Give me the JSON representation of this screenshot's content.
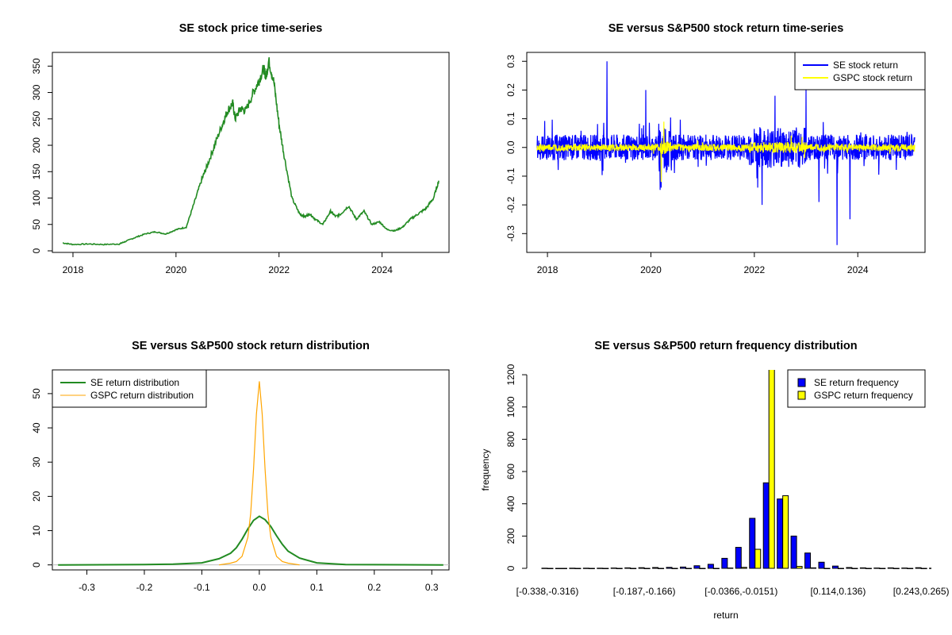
{
  "colors": {
    "se": "#0000FF",
    "gspc": "#FFFF00",
    "price": "#228B22",
    "se_density": "#228B22",
    "gspc_density": "#FFA500"
  },
  "chart_data": [
    {
      "type": "line",
      "title": "SE stock price time-series",
      "xlabel": "",
      "ylabel": "",
      "xlim": [
        2017.6,
        2025.3
      ],
      "ylim": [
        0,
        370
      ],
      "x_ticks": [
        2018,
        2020,
        2022,
        2024
      ],
      "x_tick_labels": [
        "2018",
        "2020",
        "2022",
        "2024"
      ],
      "y_ticks": [
        0,
        50,
        100,
        150,
        200,
        250,
        300,
        350
      ],
      "y_tick_labels": [
        "0",
        "50",
        "100",
        "150",
        "200",
        "250",
        "300",
        "350"
      ],
      "series": [
        {
          "color": "#228B22",
          "x": [
            2017.8,
            2018.0,
            2018.3,
            2018.6,
            2018.9,
            2019.0,
            2019.2,
            2019.4,
            2019.6,
            2019.8,
            2020.0,
            2020.2,
            2020.35,
            2020.5,
            2020.6,
            2020.75,
            2020.9,
            2021.0,
            2021.1,
            2021.15,
            2021.25,
            2021.35,
            2021.5,
            2021.6,
            2021.7,
            2021.75,
            2021.8,
            2021.9,
            2022.0,
            2022.1,
            2022.25,
            2022.4,
            2022.5,
            2022.6,
            2022.7,
            2022.85,
            2023.0,
            2023.1,
            2023.2,
            2023.35,
            2023.5,
            2023.65,
            2023.8,
            2023.95,
            2024.1,
            2024.25,
            2024.4,
            2024.55,
            2024.7,
            2024.85,
            2025.0,
            2025.1
          ],
          "y": [
            15,
            12,
            13,
            12,
            13,
            17,
            25,
            32,
            36,
            32,
            40,
            45,
            90,
            135,
            160,
            200,
            240,
            265,
            280,
            250,
            270,
            265,
            300,
            320,
            345,
            330,
            360,
            320,
            240,
            180,
            100,
            70,
            65,
            70,
            60,
            50,
            75,
            65,
            70,
            85,
            60,
            75,
            50,
            55,
            40,
            38,
            45,
            60,
            70,
            80,
            100,
            133
          ]
        }
      ]
    },
    {
      "type": "line",
      "title": "SE versus S&P500 stock return time-series",
      "xlabel": "",
      "ylabel": "",
      "xlim": [
        2017.6,
        2025.3
      ],
      "ylim": [
        -0.36,
        0.32
      ],
      "x_ticks": [
        2018,
        2020,
        2022,
        2024
      ],
      "x_tick_labels": [
        "2018",
        "2020",
        "2022",
        "2024"
      ],
      "y_ticks": [
        -0.3,
        -0.2,
        -0.1,
        0.0,
        0.1,
        0.2,
        0.3
      ],
      "y_tick_labels": [
        "-0.3",
        "-0.2",
        "-0.1",
        "0.0",
        "0.1",
        "0.2",
        "0.3"
      ],
      "legend": "top-right",
      "series": [
        {
          "name": "SE stock return",
          "color": "#0000FF",
          "x_range": [
            2017.8,
            2025.1
          ],
          "amplitude": 0.045,
          "spikes": [
            [
              2019.15,
              0.3
            ],
            [
              2019.9,
              0.2
            ],
            [
              2020.2,
              -0.14
            ],
            [
              2022.15,
              -0.2
            ],
            [
              2022.4,
              0.18
            ],
            [
              2023.0,
              0.2
            ],
            [
              2023.25,
              -0.19
            ],
            [
              2023.6,
              -0.34
            ],
            [
              2023.85,
              -0.25
            ]
          ]
        },
        {
          "name": "GSPC stock return",
          "color": "#FFFF00",
          "x_range": [
            2017.8,
            2025.1
          ],
          "amplitude": 0.012,
          "spikes": [
            [
              2020.2,
              -0.12
            ],
            [
              2020.25,
              0.09
            ]
          ]
        }
      ]
    },
    {
      "type": "line",
      "title": "SE versus S&P500 stock return distribution",
      "xlabel": "",
      "ylabel": "",
      "xlim": [
        -0.36,
        0.33
      ],
      "ylim": [
        -1,
        56
      ],
      "x_ticks": [
        -0.3,
        -0.2,
        -0.1,
        0.0,
        0.1,
        0.2,
        0.3
      ],
      "x_tick_labels": [
        "-0.3",
        "-0.2",
        "-0.1",
        "0.0",
        "0.1",
        "0.2",
        "0.3"
      ],
      "y_ticks": [
        0,
        10,
        20,
        30,
        40,
        50
      ],
      "y_tick_labels": [
        "0",
        "10",
        "20",
        "30",
        "40",
        "50"
      ],
      "legend": "top-left",
      "series": [
        {
          "name": "SE return distribution",
          "color": "#228B22",
          "x": [
            -0.35,
            -0.2,
            -0.15,
            -0.1,
            -0.07,
            -0.05,
            -0.04,
            -0.03,
            -0.02,
            -0.01,
            0.0,
            0.01,
            0.02,
            0.03,
            0.04,
            0.05,
            0.07,
            0.1,
            0.15,
            0.32
          ],
          "y": [
            0,
            0.1,
            0.2,
            0.6,
            1.8,
            3.4,
            5.0,
            7.5,
            10.5,
            13.0,
            14.2,
            13.2,
            11.2,
            8.5,
            6.0,
            4.0,
            2.0,
            0.6,
            0.1,
            0
          ]
        },
        {
          "name": "GSPC return distribution",
          "color": "#FFA500",
          "x": [
            -0.07,
            -0.05,
            -0.04,
            -0.03,
            -0.02,
            -0.015,
            -0.01,
            -0.005,
            0.0,
            0.005,
            0.01,
            0.015,
            0.02,
            0.03,
            0.04,
            0.05,
            0.07
          ],
          "y": [
            0,
            0.5,
            1.0,
            2.5,
            8.0,
            15.0,
            28.0,
            44.0,
            53.6,
            44.0,
            28.0,
            15.0,
            8.0,
            2.5,
            1.0,
            0.5,
            0
          ]
        }
      ]
    },
    {
      "type": "bar",
      "title": "SE versus S&P500 return frequency distribution",
      "xlabel": "return",
      "ylabel": "frequency",
      "ylim": [
        0,
        1230
      ],
      "y_ticks": [
        0,
        200,
        400,
        600,
        800,
        1000,
        1200
      ],
      "y_tick_labels": [
        "0",
        "200",
        "400",
        "600",
        "800",
        "1000",
        "1200"
      ],
      "legend": "top-right",
      "category_tick_labels": [
        {
          "index": 0,
          "label": "[-0.338,-0.316)"
        },
        {
          "index": 7,
          "label": "[-0.187,-0.166)"
        },
        {
          "index": 14,
          "label": "[-0.0366,-0.0151)"
        },
        {
          "index": 21,
          "label": "[0.114,0.136)"
        },
        {
          "index": 27,
          "label": "[0.243,0.265)"
        }
      ],
      "series": [
        {
          "name": "SE return frequency",
          "color": "#0000FF",
          "values": [
            1,
            0,
            1,
            1,
            1,
            2,
            3,
            4,
            5,
            6,
            8,
            16,
            25,
            62,
            130,
            310,
            530,
            430,
            200,
            95,
            38,
            14,
            5,
            3,
            2,
            3,
            2,
            4,
            1,
            1,
            0,
            1
          ]
        },
        {
          "name": "GSPC return frequency",
          "color": "#FFFF00",
          "values": [
            0,
            0,
            0,
            0,
            0,
            0,
            0,
            0,
            0,
            0,
            0,
            0,
            0,
            2,
            6,
            118,
            1300,
            450,
            12,
            3,
            0,
            0,
            0,
            0,
            0,
            0,
            0,
            0,
            0,
            0,
            0,
            0
          ]
        }
      ]
    }
  ]
}
